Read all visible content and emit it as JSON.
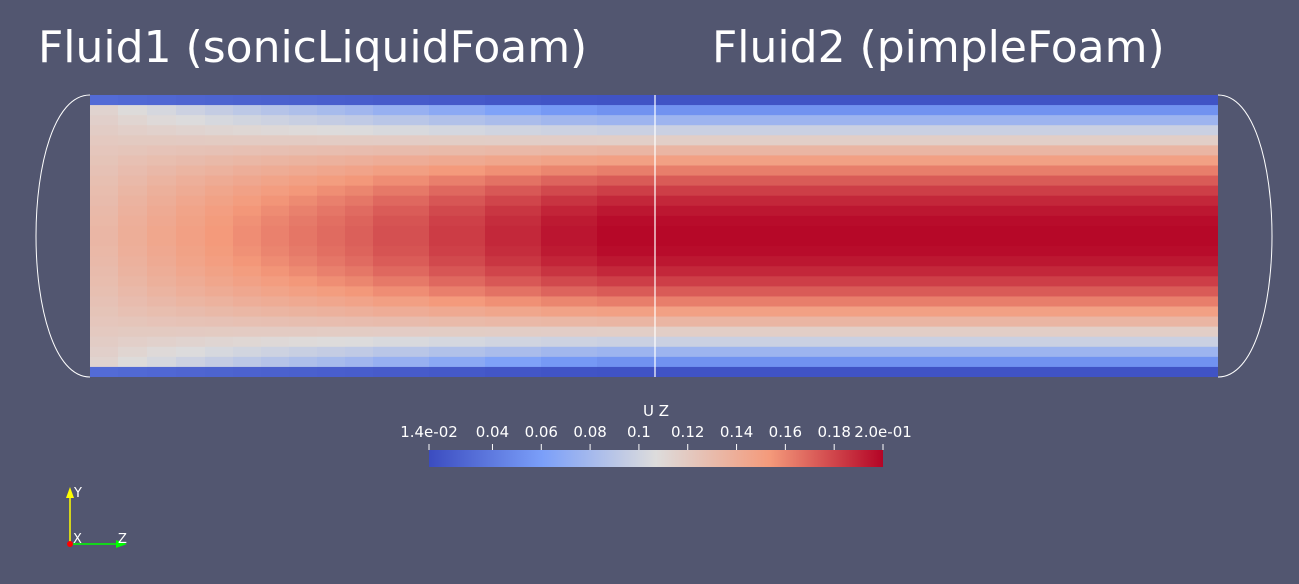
{
  "titles": {
    "left": "Fluid1 (sonicLiquidFoam)",
    "right": "Fluid2 (pimpleFoam)"
  },
  "colorbar": {
    "title": "U Z",
    "tick_labels": [
      "1.4e-02",
      "0.04",
      "0.06",
      "0.08",
      "0.1",
      "0.12",
      "0.14",
      "0.16",
      "0.18",
      "2.0e-01"
    ],
    "tick_values": [
      0.014,
      0.04,
      0.06,
      0.08,
      0.1,
      0.12,
      0.14,
      0.16,
      0.18,
      0.2
    ],
    "range": [
      0.014,
      0.2
    ],
    "colormap": "Cool to Warm",
    "color_stops": [
      "#3b4cc0",
      "#dddcdc",
      "#b40426"
    ]
  },
  "axes": {
    "x_label": "X",
    "y_label": "Y",
    "z_label": "Z",
    "x_color": "#ff0000",
    "y_color": "#ffff00",
    "z_color": "#00ff00"
  },
  "colors": {
    "background": "#525670",
    "outline": "#ffffff"
  }
}
